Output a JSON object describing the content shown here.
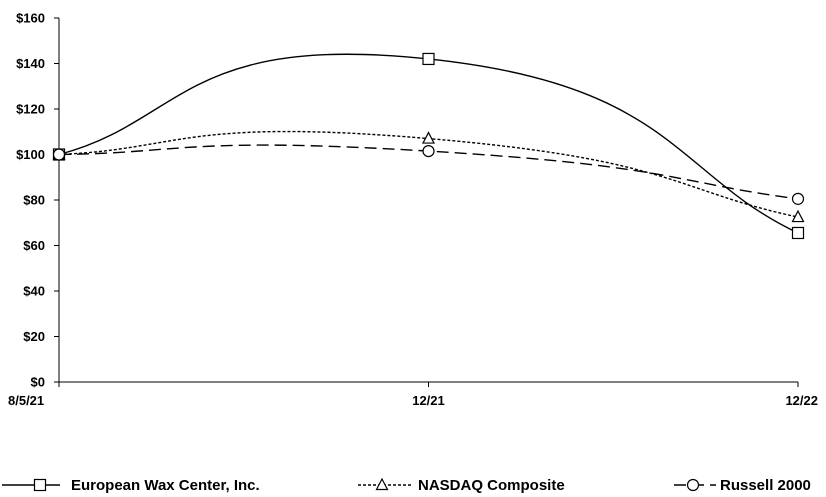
{
  "chart_data": {
    "type": "line",
    "title": "",
    "xlabel": "",
    "ylabel": "",
    "categories": [
      "8/5/21",
      "12/21",
      "12/22"
    ],
    "ylim": [
      0,
      160
    ],
    "yticks": [
      0,
      20,
      40,
      60,
      80,
      100,
      120,
      140,
      160
    ],
    "ytick_labels": [
      "$0",
      "$20",
      "$40",
      "$60",
      "$80",
      "$100",
      "$120",
      "$140",
      "$160"
    ],
    "grid": false,
    "legend_position": "bottom",
    "series": [
      {
        "name": "European Wax Center, Inc.",
        "values": [
          100,
          142,
          65.5
        ],
        "marker": "square",
        "line_style": "solid",
        "color": "#000000"
      },
      {
        "name": "NASDAQ Composite",
        "values": [
          100,
          107,
          72.5
        ],
        "marker": "triangle",
        "line_style": "dotted",
        "color": "#000000"
      },
      {
        "name": "Russell 2000",
        "values": [
          100,
          101.5,
          80.5
        ],
        "marker": "circle",
        "line_style": "dashed",
        "color": "#000000"
      }
    ]
  }
}
